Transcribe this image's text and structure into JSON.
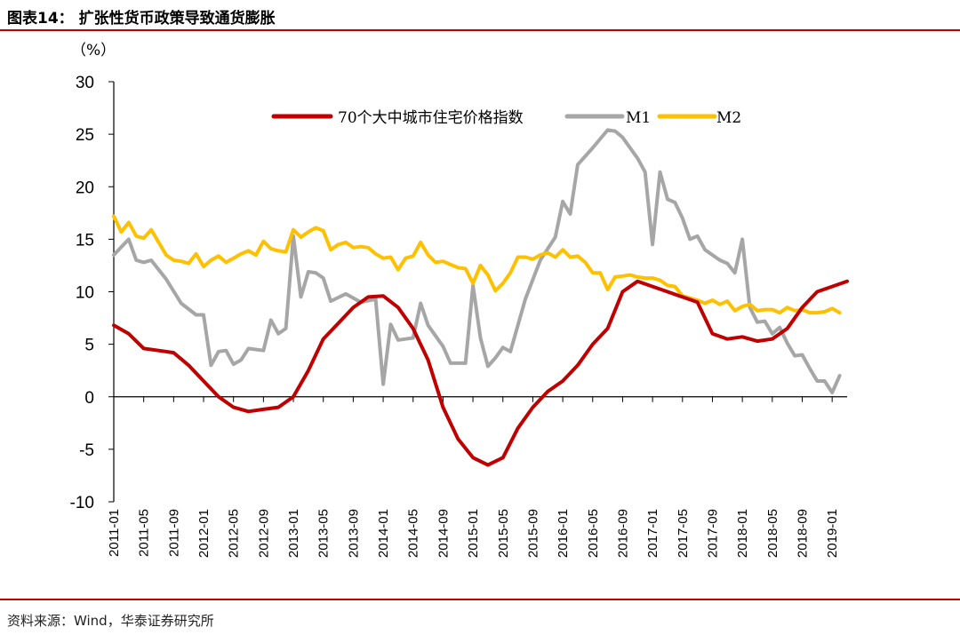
{
  "header": {
    "title": "图表14：  扩张性货币政策导致通货膨胀"
  },
  "footer": {
    "source": "资料来源：Wind，华泰证券研究所"
  },
  "colors": {
    "house": "#c00000",
    "m1": "#a6a6a6",
    "m2": "#ffc000",
    "rule": "#c00000"
  },
  "chart_data": {
    "type": "line",
    "yunit": "（%）",
    "ylim": [
      -10,
      30
    ],
    "yticks": [
      -10,
      -5,
      0,
      5,
      10,
      15,
      20,
      25,
      30
    ],
    "xlim": [
      "2011-01",
      "2019-03"
    ],
    "xticks": [
      "2011-01",
      "2011-05",
      "2011-09",
      "2012-01",
      "2012-05",
      "2012-09",
      "2013-01",
      "2013-05",
      "2013-09",
      "2014-01",
      "2014-05",
      "2014-09",
      "2015-01",
      "2015-05",
      "2015-09",
      "2016-01",
      "2016-05",
      "2016-09",
      "2017-01",
      "2017-05",
      "2017-09",
      "2018-01",
      "2018-05",
      "2018-09",
      "2019-01"
    ],
    "legend_position": "top",
    "series": [
      {
        "name": "70个大中城市住宅价格指数",
        "points": [
          [
            "2011-01",
            6.8
          ],
          [
            "2011-03",
            6.0
          ],
          [
            "2011-05",
            4.6
          ],
          [
            "2011-07",
            4.4
          ],
          [
            "2011-09",
            4.2
          ],
          [
            "2011-11",
            3.0
          ],
          [
            "2012-01",
            1.5
          ],
          [
            "2012-03",
            0.0
          ],
          [
            "2012-05",
            -1.0
          ],
          [
            "2012-07",
            -1.4
          ],
          [
            "2012-09",
            -1.2
          ],
          [
            "2012-11",
            -1.0
          ],
          [
            "2013-01",
            0.0
          ],
          [
            "2013-03",
            2.5
          ],
          [
            "2013-05",
            5.5
          ],
          [
            "2013-07",
            7.0
          ],
          [
            "2013-09",
            8.5
          ],
          [
            "2013-11",
            9.5
          ],
          [
            "2014-01",
            9.6
          ],
          [
            "2014-03",
            8.5
          ],
          [
            "2014-05",
            6.5
          ],
          [
            "2014-07",
            3.5
          ],
          [
            "2014-09",
            -1.0
          ],
          [
            "2014-11",
            -4.0
          ],
          [
            "2015-01",
            -5.8
          ],
          [
            "2015-03",
            -6.5
          ],
          [
            "2015-05",
            -5.8
          ],
          [
            "2015-07",
            -3.0
          ],
          [
            "2015-09",
            -1.0
          ],
          [
            "2015-11",
            0.5
          ],
          [
            "2016-01",
            1.5
          ],
          [
            "2016-03",
            3.0
          ],
          [
            "2016-05",
            5.0
          ],
          [
            "2016-07",
            6.5
          ],
          [
            "2016-09",
            10.0
          ],
          [
            "2016-11",
            11.0
          ],
          [
            "2017-01",
            10.5
          ],
          [
            "2017-03",
            10.0
          ],
          [
            "2017-05",
            9.5
          ],
          [
            "2017-07",
            9.0
          ],
          [
            "2017-09",
            6.0
          ],
          [
            "2017-11",
            5.5
          ],
          [
            "2018-01",
            5.7
          ],
          [
            "2018-03",
            5.3
          ],
          [
            "2018-05",
            5.5
          ],
          [
            "2018-07",
            6.5
          ],
          [
            "2018-09",
            8.5
          ],
          [
            "2018-11",
            10.0
          ],
          [
            "2019-01",
            10.5
          ],
          [
            "2019-03",
            11.0
          ]
        ]
      },
      {
        "name": "M1",
        "points": [
          [
            "2011-01",
            13.5
          ],
          [
            "2011-03",
            15.0
          ],
          [
            "2011-04",
            13.0
          ],
          [
            "2011-05",
            12.8
          ],
          [
            "2011-06",
            13.0
          ],
          [
            "2011-08",
            11.2
          ],
          [
            "2011-10",
            8.9
          ],
          [
            "2011-12",
            7.8
          ],
          [
            "2012-01",
            7.8
          ],
          [
            "2012-02",
            3.0
          ],
          [
            "2012-03",
            4.3
          ],
          [
            "2012-04",
            4.4
          ],
          [
            "2012-05",
            3.1
          ],
          [
            "2012-06",
            3.5
          ],
          [
            "2012-07",
            4.6
          ],
          [
            "2012-09",
            4.4
          ],
          [
            "2012-10",
            7.3
          ],
          [
            "2012-11",
            6.0
          ],
          [
            "2012-12",
            6.5
          ],
          [
            "2013-01",
            15.3
          ],
          [
            "2013-02",
            9.5
          ],
          [
            "2013-03",
            11.9
          ],
          [
            "2013-04",
            11.8
          ],
          [
            "2013-05",
            11.3
          ],
          [
            "2013-06",
            9.1
          ],
          [
            "2013-08",
            9.8
          ],
          [
            "2013-10",
            9.0
          ],
          [
            "2013-12",
            9.3
          ],
          [
            "2014-01",
            1.2
          ],
          [
            "2014-02",
            6.9
          ],
          [
            "2014-03",
            5.4
          ],
          [
            "2014-04",
            5.5
          ],
          [
            "2014-05",
            5.6
          ],
          [
            "2014-06",
            8.9
          ],
          [
            "2014-07",
            6.8
          ],
          [
            "2014-09",
            4.8
          ],
          [
            "2014-10",
            3.2
          ],
          [
            "2014-12",
            3.2
          ],
          [
            "2015-01",
            10.6
          ],
          [
            "2015-02",
            5.6
          ],
          [
            "2015-03",
            2.9
          ],
          [
            "2015-04",
            3.7
          ],
          [
            "2015-05",
            4.7
          ],
          [
            "2015-06",
            4.3
          ],
          [
            "2015-08",
            9.3
          ],
          [
            "2015-10",
            13.0
          ],
          [
            "2015-12",
            15.2
          ],
          [
            "2016-01",
            18.6
          ],
          [
            "2016-02",
            17.4
          ],
          [
            "2016-03",
            22.1
          ],
          [
            "2016-05",
            23.7
          ],
          [
            "2016-07",
            25.4
          ],
          [
            "2016-08",
            25.3
          ],
          [
            "2016-09",
            24.7
          ],
          [
            "2016-11",
            22.7
          ],
          [
            "2016-12",
            21.4
          ],
          [
            "2017-01",
            14.5
          ],
          [
            "2017-02",
            21.4
          ],
          [
            "2017-03",
            18.8
          ],
          [
            "2017-04",
            18.5
          ],
          [
            "2017-05",
            17.0
          ],
          [
            "2017-06",
            15.0
          ],
          [
            "2017-07",
            15.3
          ],
          [
            "2017-08",
            14.0
          ],
          [
            "2017-10",
            13.0
          ],
          [
            "2017-11",
            12.7
          ],
          [
            "2017-12",
            11.8
          ],
          [
            "2018-01",
            15.0
          ],
          [
            "2018-02",
            8.5
          ],
          [
            "2018-03",
            7.1
          ],
          [
            "2018-04",
            7.2
          ],
          [
            "2018-05",
            6.0
          ],
          [
            "2018-06",
            6.6
          ],
          [
            "2018-07",
            5.1
          ],
          [
            "2018-08",
            3.9
          ],
          [
            "2018-09",
            4.0
          ],
          [
            "2018-10",
            2.7
          ],
          [
            "2018-11",
            1.5
          ],
          [
            "2018-12",
            1.5
          ],
          [
            "2019-01",
            0.4
          ],
          [
            "2019-02",
            2.0
          ]
        ]
      },
      {
        "name": "M2",
        "points": [
          [
            "2011-01",
            17.2
          ],
          [
            "2011-02",
            15.7
          ],
          [
            "2011-03",
            16.6
          ],
          [
            "2011-04",
            15.3
          ],
          [
            "2011-05",
            15.1
          ],
          [
            "2011-06",
            15.9
          ],
          [
            "2011-07",
            14.7
          ],
          [
            "2011-08",
            13.5
          ],
          [
            "2011-09",
            13.0
          ],
          [
            "2011-10",
            12.9
          ],
          [
            "2011-11",
            12.7
          ],
          [
            "2011-12",
            13.6
          ],
          [
            "2012-01",
            12.4
          ],
          [
            "2012-02",
            13.0
          ],
          [
            "2012-03",
            13.4
          ],
          [
            "2012-04",
            12.8
          ],
          [
            "2012-05",
            13.2
          ],
          [
            "2012-06",
            13.6
          ],
          [
            "2012-07",
            13.9
          ],
          [
            "2012-08",
            13.5
          ],
          [
            "2012-09",
            14.8
          ],
          [
            "2012-10",
            14.1
          ],
          [
            "2012-11",
            13.9
          ],
          [
            "2012-12",
            13.8
          ],
          [
            "2013-01",
            15.9
          ],
          [
            "2013-02",
            15.2
          ],
          [
            "2013-03",
            15.7
          ],
          [
            "2013-04",
            16.1
          ],
          [
            "2013-05",
            15.8
          ],
          [
            "2013-06",
            14.0
          ],
          [
            "2013-07",
            14.5
          ],
          [
            "2013-08",
            14.7
          ],
          [
            "2013-09",
            14.2
          ],
          [
            "2013-10",
            14.3
          ],
          [
            "2013-11",
            14.2
          ],
          [
            "2013-12",
            13.6
          ],
          [
            "2014-01",
            13.2
          ],
          [
            "2014-02",
            13.3
          ],
          [
            "2014-03",
            12.1
          ],
          [
            "2014-04",
            13.2
          ],
          [
            "2014-05",
            13.4
          ],
          [
            "2014-06",
            14.7
          ],
          [
            "2014-07",
            13.5
          ],
          [
            "2014-08",
            12.8
          ],
          [
            "2014-09",
            12.9
          ],
          [
            "2014-10",
            12.6
          ],
          [
            "2014-11",
            12.3
          ],
          [
            "2014-12",
            12.2
          ],
          [
            "2015-01",
            10.8
          ],
          [
            "2015-02",
            12.5
          ],
          [
            "2015-03",
            11.6
          ],
          [
            "2015-04",
            10.1
          ],
          [
            "2015-05",
            10.8
          ],
          [
            "2015-06",
            11.8
          ],
          [
            "2015-07",
            13.3
          ],
          [
            "2015-08",
            13.3
          ],
          [
            "2015-09",
            13.1
          ],
          [
            "2015-10",
            13.5
          ],
          [
            "2015-11",
            13.7
          ],
          [
            "2015-12",
            13.3
          ],
          [
            "2016-01",
            14.0
          ],
          [
            "2016-02",
            13.3
          ],
          [
            "2016-03",
            13.4
          ],
          [
            "2016-04",
            12.8
          ],
          [
            "2016-05",
            11.8
          ],
          [
            "2016-06",
            11.8
          ],
          [
            "2016-07",
            10.2
          ],
          [
            "2016-08",
            11.4
          ],
          [
            "2016-09",
            11.5
          ],
          [
            "2016-10",
            11.6
          ],
          [
            "2016-11",
            11.4
          ],
          [
            "2016-12",
            11.3
          ],
          [
            "2017-01",
            11.3
          ],
          [
            "2017-02",
            11.1
          ],
          [
            "2017-03",
            10.6
          ],
          [
            "2017-04",
            10.5
          ],
          [
            "2017-05",
            9.6
          ],
          [
            "2017-06",
            9.4
          ],
          [
            "2017-07",
            9.2
          ],
          [
            "2017-08",
            8.9
          ],
          [
            "2017-09",
            9.2
          ],
          [
            "2017-10",
            8.8
          ],
          [
            "2017-11",
            9.1
          ],
          [
            "2017-12",
            8.2
          ],
          [
            "2018-01",
            8.6
          ],
          [
            "2018-02",
            8.8
          ],
          [
            "2018-03",
            8.2
          ],
          [
            "2018-04",
            8.3
          ],
          [
            "2018-05",
            8.3
          ],
          [
            "2018-06",
            8.0
          ],
          [
            "2018-07",
            8.5
          ],
          [
            "2018-08",
            8.2
          ],
          [
            "2018-09",
            8.3
          ],
          [
            "2018-10",
            8.0
          ],
          [
            "2018-11",
            8.0
          ],
          [
            "2018-12",
            8.1
          ],
          [
            "2019-01",
            8.4
          ],
          [
            "2019-02",
            8.0
          ]
        ]
      }
    ]
  }
}
